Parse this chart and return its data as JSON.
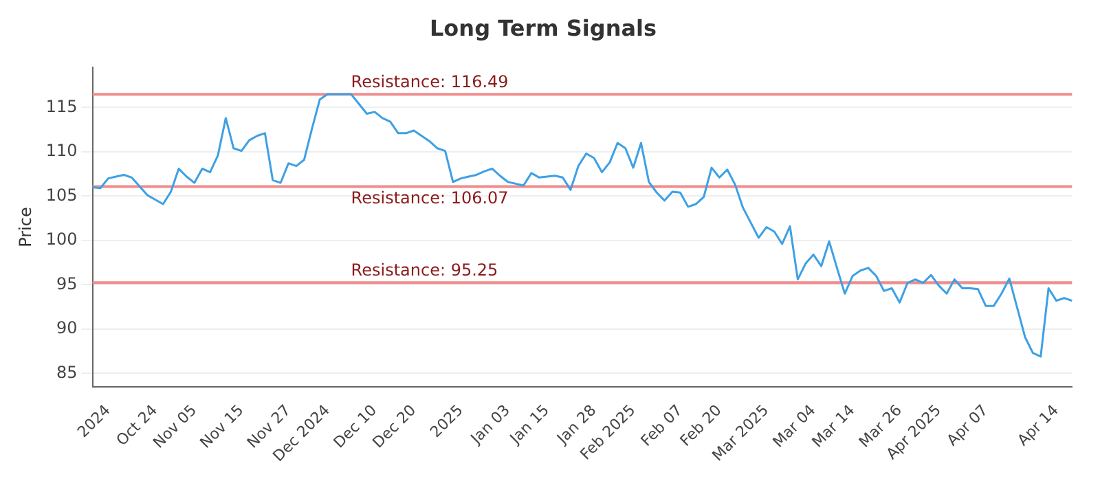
{
  "chart_data": {
    "type": "line",
    "title": "Long Term Signals",
    "ylabel": "Price",
    "categories": [
      null,
      null,
      "2024",
      null,
      null,
      null,
      null,
      null,
      "Oct 24",
      null,
      null,
      null,
      null,
      "Nov 05",
      null,
      null,
      null,
      null,
      null,
      "Nov 15",
      null,
      null,
      null,
      null,
      null,
      "Nov 27",
      null,
      null,
      null,
      null,
      "Dec 2024",
      null,
      null,
      null,
      null,
      null,
      "Dec 10",
      null,
      null,
      null,
      null,
      "Dec 20",
      null,
      null,
      null,
      null,
      null,
      "2025",
      null,
      null,
      null,
      null,
      null,
      "Jan 03",
      null,
      null,
      null,
      null,
      "Jan 15",
      null,
      null,
      null,
      null,
      null,
      "Jan 28",
      null,
      null,
      null,
      null,
      "Feb 2025",
      null,
      null,
      null,
      null,
      null,
      "Feb 07",
      null,
      null,
      null,
      null,
      "Feb 20",
      null,
      null,
      null,
      null,
      null,
      "Mar 2025",
      null,
      null,
      null,
      null,
      null,
      "Mar 04",
      null,
      null,
      null,
      null,
      "Mar 14",
      null,
      null,
      null,
      null,
      null,
      "Mar 26",
      null,
      null,
      null,
      null,
      "Apr 2025",
      null,
      null,
      null,
      null,
      null,
      "Apr 07",
      null,
      null,
      null,
      null,
      null,
      null,
      null,
      null,
      "Apr 14",
      null,
      null
    ],
    "series": [
      {
        "color": "#3ea0e4",
        "values": [
          106.0,
          105.9,
          107.0,
          107.2,
          107.4,
          107.1,
          106.1,
          105.1,
          104.6,
          104.1,
          105.5,
          108.1,
          107.2,
          106.5,
          108.1,
          107.7,
          109.6,
          113.8,
          110.4,
          110.1,
          111.3,
          111.8,
          112.1,
          106.8,
          106.5,
          108.7,
          108.4,
          109.1,
          112.6,
          115.9,
          116.5,
          116.5,
          116.5,
          116.5,
          115.4,
          114.3,
          114.5,
          113.8,
          113.4,
          112.1,
          112.1,
          112.4,
          111.8,
          111.2,
          110.4,
          110.1,
          106.6,
          107.0,
          107.2,
          107.4,
          107.8,
          108.1,
          107.3,
          106.6,
          106.4,
          106.2,
          107.6,
          107.1,
          107.2,
          107.3,
          107.1,
          105.7,
          108.4,
          109.8,
          109.3,
          107.7,
          108.8,
          111.0,
          110.4,
          108.2,
          111.0,
          106.6,
          105.4,
          104.5,
          105.5,
          105.4,
          103.8,
          104.1,
          104.9,
          108.2,
          107.1,
          108.0,
          106.3,
          103.7,
          102.0,
          100.3,
          101.5,
          101.0,
          99.6,
          101.6,
          95.6,
          97.4,
          98.4,
          97.1,
          99.9,
          96.9,
          94.0,
          96.0,
          96.6,
          96.9,
          96.0,
          94.3,
          94.6,
          93.0,
          95.2,
          95.6,
          95.2,
          96.1,
          94.9,
          94.0,
          95.6,
          94.6,
          94.6,
          94.5,
          92.6,
          92.6,
          94.0,
          95.7,
          92.4,
          89.1,
          87.3,
          86.9,
          94.6,
          93.2,
          93.5,
          93.2
        ]
      }
    ],
    "ylim": [
      83.5,
      119.5
    ],
    "yticks": [
      85,
      90,
      95,
      100,
      105,
      110,
      115
    ],
    "grid": "y",
    "legend": false,
    "marker": "none",
    "line_style": "solid",
    "ref_lines": [
      {
        "axis": "y",
        "value": 116.49,
        "label": "Resistance: 116.49",
        "color": "#f08c8c"
      },
      {
        "axis": "y",
        "value": 106.07,
        "label": "Resistance: 106.07",
        "color": "#f08c8c"
      },
      {
        "axis": "y",
        "value": 95.25,
        "label": "Resistance: 95.25",
        "color": "#f08c8c"
      }
    ]
  }
}
